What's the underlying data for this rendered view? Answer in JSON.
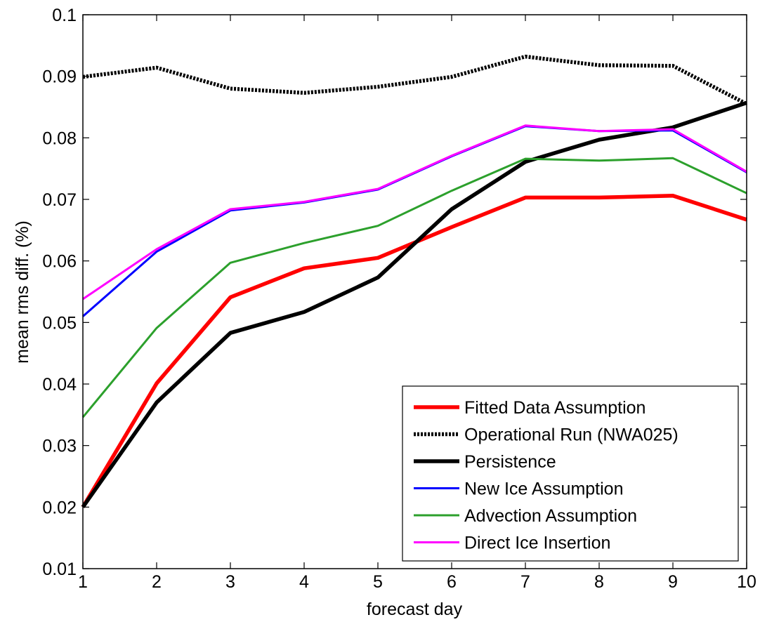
{
  "chart_data": {
    "type": "line",
    "xlabel": "forecast day",
    "ylabel": "mean rms diff. (%)",
    "xlim": [
      1,
      10
    ],
    "ylim": [
      0.01,
      0.1
    ],
    "grid": false,
    "legend_position": "bottom-right",
    "x": [
      1,
      2,
      3,
      4,
      5,
      6,
      7,
      8,
      9,
      10
    ],
    "x_ticks": [
      "1",
      "2",
      "3",
      "4",
      "5",
      "6",
      "7",
      "8",
      "9",
      "10"
    ],
    "y_ticks": [
      0.01,
      0.02,
      0.03,
      0.04,
      0.05,
      0.06,
      0.07,
      0.08,
      0.09,
      0.1
    ],
    "y_tick_labels": [
      "0.01",
      "0.02",
      "0.03",
      "0.04",
      "0.05",
      "0.06",
      "0.07",
      "0.08",
      "0.09",
      "0.1"
    ],
    "series": [
      {
        "name": "Fitted Data Assumption",
        "color": "#ff0000",
        "style": "solid",
        "width": "thick",
        "values": [
          0.02,
          0.0401,
          0.0541,
          0.0588,
          0.0605,
          0.0655,
          0.0703,
          0.0703,
          0.0706,
          0.0667
        ]
      },
      {
        "name": "Operational Run (NWA025)",
        "color": "#000000",
        "style": "dotted",
        "width": "thick",
        "values": [
          0.0899,
          0.0914,
          0.088,
          0.0873,
          0.0883,
          0.0899,
          0.0932,
          0.0918,
          0.0917,
          0.0855
        ]
      },
      {
        "name": "Persistence",
        "color": "#000000",
        "style": "solid",
        "width": "thick",
        "values": [
          0.02,
          0.037,
          0.0483,
          0.0517,
          0.0573,
          0.0684,
          0.0761,
          0.0797,
          0.0817,
          0.0857
        ]
      },
      {
        "name": "New Ice Assumption",
        "color": "#0000ff",
        "style": "solid",
        "width": "normal",
        "values": [
          0.051,
          0.0615,
          0.0682,
          0.0695,
          0.0716,
          0.077,
          0.0819,
          0.0811,
          0.0812,
          0.0744
        ]
      },
      {
        "name": "Advection Assumption",
        "color": "#2ca02c",
        "style": "solid",
        "width": "normal",
        "values": [
          0.0346,
          0.0491,
          0.0597,
          0.0629,
          0.0657,
          0.0714,
          0.0766,
          0.0763,
          0.0767,
          0.071
        ]
      },
      {
        "name": "Direct Ice Insertion",
        "color": "#ff00ff",
        "style": "solid",
        "width": "normal",
        "values": [
          0.0538,
          0.0619,
          0.0684,
          0.0696,
          0.0717,
          0.0771,
          0.082,
          0.0811,
          0.0814,
          0.0745
        ]
      }
    ]
  }
}
